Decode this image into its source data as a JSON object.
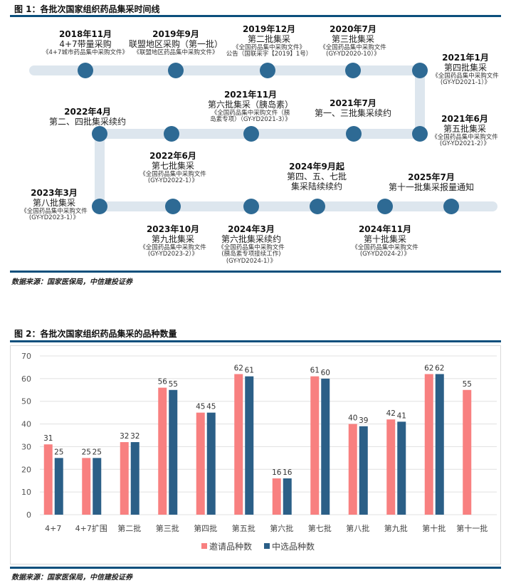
{
  "fig1": {
    "title": "图 1：各批次国家组织药品集采时间线",
    "source": "数据来源：国家医保局，中信建投证券",
    "track_color": "#dde6ee",
    "node_color": "#2e6a94",
    "events": [
      {
        "date": "2018年11月",
        "name": "4+7带量采购",
        "doc": [
          "《4+7城市药品集中采购文件》"
        ]
      },
      {
        "date": "2019年9月",
        "name": "联盟地区采购（第一批）",
        "doc": [
          "《联盟地区药品集中采购文件》"
        ]
      },
      {
        "date": "2019年12月",
        "name": "第二批集采",
        "doc": [
          "《全国药品集中采购文件》",
          "公告（国联采字【2019】1号）"
        ]
      },
      {
        "date": "2020年7月",
        "name": "第三批集采",
        "doc": [
          "《全国药品集中采购文件",
          "(GY-YD2020-10）》"
        ]
      },
      {
        "date": "2021年1月",
        "name": "第四批集采",
        "doc": [
          "《全国药品集中采购文件",
          "(GY-YD2021-1）》"
        ]
      },
      {
        "date": "2021年6月",
        "name": "第五批集采",
        "doc": [
          "《全国药品集中采购文件",
          "(GY-YD2021-2）》"
        ]
      },
      {
        "date": "2021年7月",
        "name": "第一、三批集采续约",
        "doc": []
      },
      {
        "date": "2021年11月",
        "name": "第六批集采（胰岛素）",
        "doc": [
          "《全国药品集中采购文件（胰",
          "岛素专项）（GY-YD2021-3）》"
        ]
      },
      {
        "date": "2022年4月",
        "name": "第二、四批集采续约",
        "doc": []
      },
      {
        "date": "2022年6月",
        "name": "第七批集采",
        "doc": [
          "《全国药品集中采购文件",
          "(GY-YD2022-1）》"
        ]
      },
      {
        "date": "2023年3月",
        "name": "第八批集采",
        "doc": [
          "《全国药品集中采购文件",
          "(GY-YD2023-1）》"
        ]
      },
      {
        "date": "2023年10月",
        "name": "第九批集采",
        "doc": [
          "《全国药品集中采购文件",
          "(GY-YD2023-2）》"
        ]
      },
      {
        "date": "2024年3月",
        "name": "第六批集采续约",
        "doc": [
          "《全国药品集中采购文件",
          "(胰岛素专项接续工作)",
          "(GY-YD2024-1）》"
        ]
      },
      {
        "date": "2024年9月起",
        "name": "第四、五、七批",
        "name2": "集采陆续续约",
        "doc": []
      },
      {
        "date": "2024年11月",
        "name": "第十批集采",
        "doc": [
          "《全国药品集中采购文件",
          "(GY-YD2024-2）》"
        ]
      },
      {
        "date": "2025年7月",
        "name": "第十一批集采报量通知",
        "doc": []
      }
    ]
  },
  "fig2": {
    "title": "图 2：各批次国家组织药品集采的品种数量",
    "source": "数据来源：国家医保局，中信建投证券"
  },
  "chart_data": {
    "type": "bar",
    "categories": [
      "4+7",
      "4+7扩围",
      "第二批",
      "第三批",
      "第四批",
      "第五批",
      "第六批",
      "第七批",
      "第八批",
      "第九批",
      "第十批",
      "第十一批"
    ],
    "series": [
      {
        "name": "邀请品种数",
        "color": "#f88080",
        "values": [
          31,
          25,
          32,
          56,
          45,
          62,
          16,
          61,
          40,
          42,
          62,
          55
        ]
      },
      {
        "name": "中选品种数",
        "color": "#2b5f87",
        "values": [
          25,
          25,
          32,
          55,
          45,
          61,
          16,
          60,
          39,
          41,
          62,
          null
        ]
      }
    ],
    "ylim": [
      0,
      70
    ],
    "yticks": [
      0,
      10,
      20,
      30,
      40,
      50,
      60,
      70
    ],
    "grid": true,
    "legend": "bottom"
  }
}
